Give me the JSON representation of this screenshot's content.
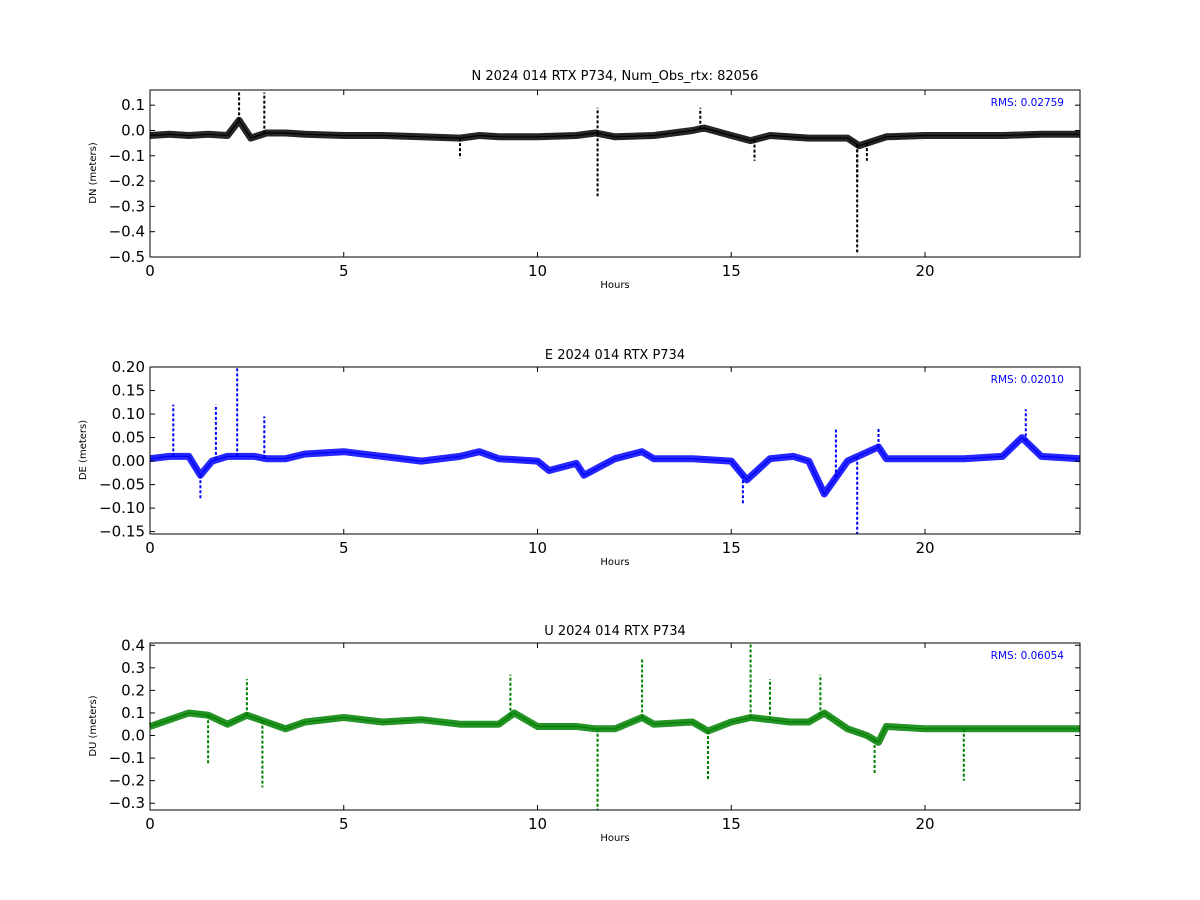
{
  "figure": {
    "background": "#ffffff"
  },
  "chart_data": [
    {
      "type": "line",
      "title": "N 2024 014 RTX  P734, Num_Obs_rtx: 82056",
      "xlabel": "Hours",
      "ylabel": "DN (meters)",
      "xlim": [
        0,
        24
      ],
      "ylim": [
        -0.5,
        0.16
      ],
      "xticks": [
        0,
        5,
        10,
        15,
        20
      ],
      "yticks": [
        0.1,
        0.0,
        -0.1,
        -0.2,
        -0.3,
        -0.4,
        -0.5
      ],
      "ytick_labels": [
        "0.1",
        "0.0",
        "−0.1",
        "−0.2",
        "−0.3",
        "−0.4",
        "−0.5"
      ],
      "annotation": "RMS:  0.02759",
      "annotation_color": "#0000ff",
      "grid": false,
      "series": [
        {
          "color": "#000000",
          "x": [
            0.0,
            0.5,
            1.0,
            1.5,
            2.0,
            2.3,
            2.6,
            3.0,
            3.5,
            4.0,
            5.0,
            6.0,
            7.0,
            8.0,
            8.5,
            9.0,
            10.0,
            11.0,
            11.5,
            12.0,
            13.0,
            14.0,
            14.3,
            15.0,
            15.5,
            16.0,
            17.0,
            17.5,
            18.0,
            18.3,
            19.0,
            20.0,
            21.0,
            22.0,
            23.0,
            24.0
          ],
          "y": [
            -0.02,
            -0.015,
            -0.02,
            -0.015,
            -0.02,
            0.04,
            -0.03,
            -0.01,
            -0.01,
            -0.015,
            -0.02,
            -0.02,
            -0.025,
            -0.03,
            -0.02,
            -0.025,
            -0.025,
            -0.02,
            -0.01,
            -0.025,
            -0.02,
            0.0,
            0.01,
            -0.02,
            -0.04,
            -0.02,
            -0.03,
            -0.03,
            -0.03,
            -0.06,
            -0.025,
            -0.02,
            -0.02,
            -0.02,
            -0.015,
            -0.015
          ],
          "spikes": [
            {
              "x": 2.3,
              "y": 0.16
            },
            {
              "x": 2.95,
              "y": 0.15
            },
            {
              "x": 11.55,
              "y": -0.26
            },
            {
              "x": 11.55,
              "y": 0.09
            },
            {
              "x": 14.2,
              "y": 0.09
            },
            {
              "x": 18.25,
              "y": -0.49
            },
            {
              "x": 18.25,
              "y": -0.2
            },
            {
              "x": 15.6,
              "y": -0.12
            },
            {
              "x": 18.5,
              "y": -0.12
            },
            {
              "x": 8.0,
              "y": -0.11
            }
          ]
        }
      ]
    },
    {
      "type": "line",
      "title": "E 2024 014 RTX  P734",
      "xlabel": "Hours",
      "ylabel": "DE (meters)",
      "xlim": [
        0,
        24
      ],
      "ylim": [
        -0.155,
        0.2
      ],
      "xticks": [
        0,
        5,
        10,
        15,
        20
      ],
      "yticks": [
        0.2,
        0.15,
        0.1,
        0.05,
        0.0,
        -0.05,
        -0.1,
        -0.15
      ],
      "ytick_labels": [
        "0.20",
        "0.15",
        "0.10",
        "0.05",
        "0.00",
        "−0.05",
        "−0.10",
        "−0.15"
      ],
      "annotation": "RMS:  0.02010",
      "annotation_color": "#0000ff",
      "grid": false,
      "series": [
        {
          "color": "#0000ff",
          "x": [
            0.0,
            0.5,
            1.0,
            1.3,
            1.6,
            2.0,
            2.3,
            2.7,
            3.0,
            3.5,
            4.0,
            5.0,
            6.0,
            7.0,
            8.0,
            8.5,
            9.0,
            10.0,
            10.3,
            11.0,
            11.2,
            12.0,
            12.7,
            13.0,
            14.0,
            15.0,
            15.4,
            16.0,
            16.6,
            17.0,
            17.4,
            18.0,
            18.8,
            19.0,
            20.0,
            21.0,
            22.0,
            22.5,
            23.0,
            24.0
          ],
          "y": [
            0.005,
            0.01,
            0.01,
            -0.03,
            0.0,
            0.01,
            0.01,
            0.01,
            0.005,
            0.005,
            0.015,
            0.02,
            0.01,
            0.0,
            0.01,
            0.02,
            0.005,
            0.0,
            -0.02,
            -0.005,
            -0.03,
            0.005,
            0.02,
            0.005,
            0.005,
            0.0,
            -0.04,
            0.005,
            0.01,
            0.0,
            -0.07,
            0.0,
            0.03,
            0.005,
            0.005,
            0.005,
            0.01,
            0.05,
            0.01,
            0.005
          ],
          "spikes": [
            {
              "x": 0.6,
              "y": 0.12
            },
            {
              "x": 1.7,
              "y": 0.12
            },
            {
              "x": 2.25,
              "y": 0.2
            },
            {
              "x": 2.95,
              "y": 0.095
            },
            {
              "x": 1.3,
              "y": -0.08
            },
            {
              "x": 18.25,
              "y": -0.155
            },
            {
              "x": 17.7,
              "y": 0.067
            },
            {
              "x": 22.6,
              "y": 0.11
            },
            {
              "x": 15.3,
              "y": -0.09
            },
            {
              "x": 18.8,
              "y": 0.07
            }
          ]
        }
      ]
    },
    {
      "type": "line",
      "title": "U 2024 014 RTX  P734",
      "xlabel": "Hours",
      "ylabel": "DU (meters)",
      "xlim": [
        0,
        24
      ],
      "ylim": [
        -0.33,
        0.41
      ],
      "xticks": [
        0,
        5,
        10,
        15,
        20
      ],
      "yticks": [
        0.4,
        0.3,
        0.2,
        0.1,
        0.0,
        -0.1,
        -0.2,
        -0.3
      ],
      "ytick_labels": [
        "0.4",
        "0.3",
        "0.2",
        "0.1",
        "0.0",
        "−0.1",
        "−0.2",
        "−0.3"
      ],
      "annotation": "RMS:  0.06054",
      "annotation_color": "#0000ff",
      "grid": false,
      "series": [
        {
          "color": "#008000",
          "x": [
            0.0,
            0.5,
            1.0,
            1.5,
            2.0,
            2.5,
            3.0,
            3.5,
            4.0,
            5.0,
            6.0,
            7.0,
            8.0,
            9.0,
            9.4,
            10.0,
            11.0,
            11.5,
            12.0,
            12.7,
            13.0,
            14.0,
            14.4,
            15.0,
            15.5,
            16.0,
            16.5,
            17.0,
            17.4,
            18.0,
            18.5,
            18.8,
            19.0,
            20.0,
            21.0,
            22.0,
            23.0,
            24.0
          ],
          "y": [
            0.04,
            0.07,
            0.1,
            0.09,
            0.05,
            0.09,
            0.06,
            0.03,
            0.06,
            0.08,
            0.06,
            0.07,
            0.05,
            0.05,
            0.1,
            0.04,
            0.04,
            0.03,
            0.03,
            0.08,
            0.05,
            0.06,
            0.02,
            0.06,
            0.08,
            0.07,
            0.06,
            0.06,
            0.1,
            0.03,
            0.0,
            -0.03,
            0.04,
            0.03,
            0.03,
            0.03,
            0.03,
            0.03
          ],
          "spikes": [
            {
              "x": 2.5,
              "y": 0.25
            },
            {
              "x": 2.9,
              "y": -0.23
            },
            {
              "x": 11.55,
              "y": -0.33
            },
            {
              "x": 12.7,
              "y": 0.34
            },
            {
              "x": 15.5,
              "y": 0.41
            },
            {
              "x": 9.3,
              "y": 0.27
            },
            {
              "x": 17.3,
              "y": 0.27
            },
            {
              "x": 18.7,
              "y": -0.17
            },
            {
              "x": 14.4,
              "y": -0.2
            },
            {
              "x": 16.0,
              "y": 0.25
            },
            {
              "x": 1.5,
              "y": -0.13
            },
            {
              "x": 21.0,
              "y": -0.2
            }
          ]
        }
      ]
    }
  ]
}
